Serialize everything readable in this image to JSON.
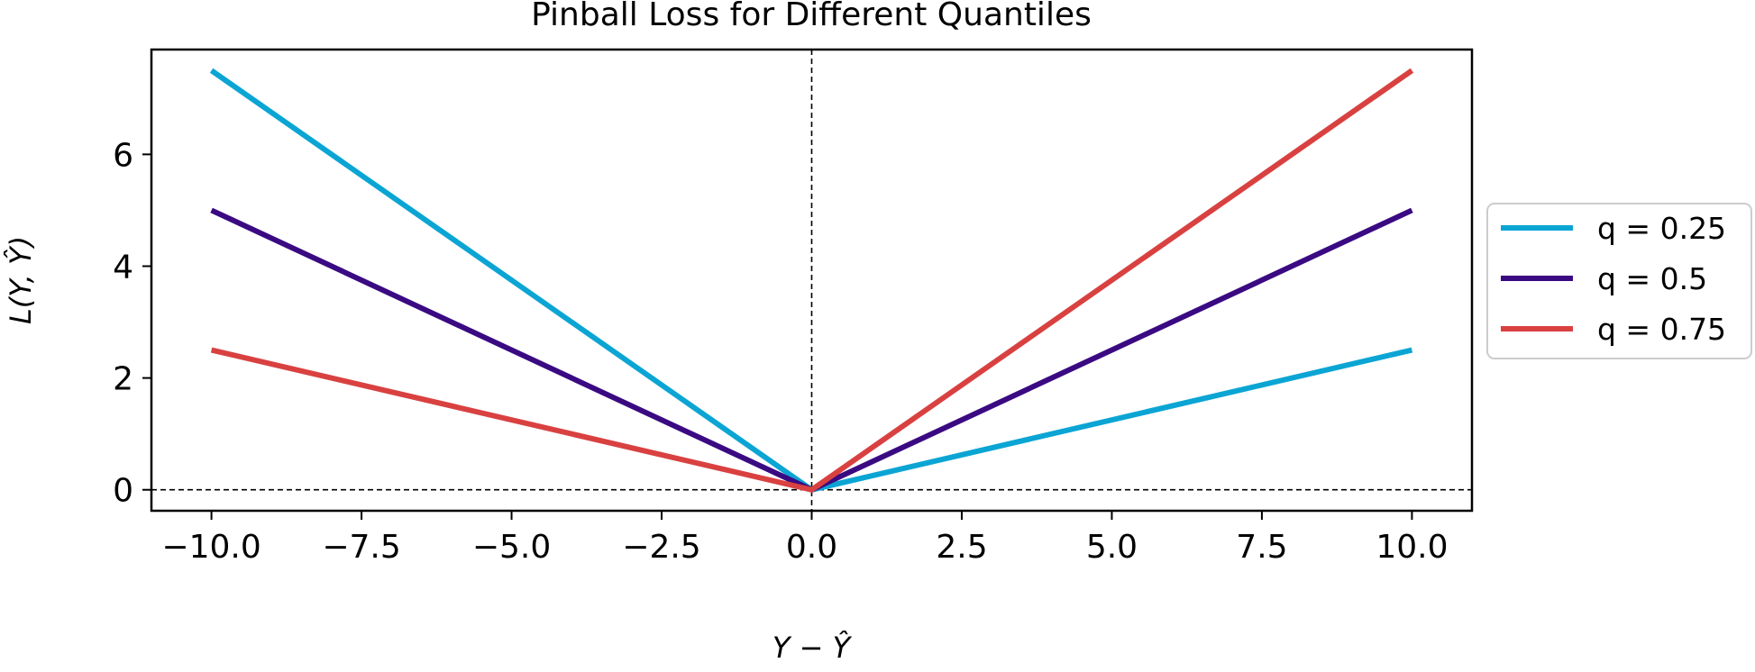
{
  "chart_data": {
    "type": "line",
    "title": "Pinball Loss for Different Quantiles",
    "xlabel": "Y − Ŷ",
    "ylabel": "L(Y, Ŷ)",
    "xlim": [
      -11,
      11
    ],
    "ylim": [
      -0.375,
      7.875
    ],
    "x": [
      -10,
      0,
      10
    ],
    "x_ticks": [
      -10.0,
      -7.5,
      -5.0,
      -2.5,
      0.0,
      2.5,
      5.0,
      7.5,
      10.0
    ],
    "x_tick_labels": [
      "−10.0",
      "−7.5",
      "−5.0",
      "−2.5",
      "0.0",
      "2.5",
      "5.0",
      "7.5",
      "10.0"
    ],
    "y_ticks": [
      0,
      2,
      4,
      6
    ],
    "y_tick_labels": [
      "0",
      "2",
      "4",
      "6"
    ],
    "series": [
      {
        "name": "q = 0.25",
        "color": "#0ba5d4",
        "values": [
          7.5,
          0,
          2.5
        ]
      },
      {
        "name": "q = 0.5",
        "color": "#3a0a82",
        "values": [
          5.0,
          0,
          5.0
        ]
      },
      {
        "name": "q = 0.75",
        "color": "#d94141",
        "values": [
          2.5,
          0,
          7.5
        ]
      }
    ],
    "reference_lines": [
      {
        "orientation": "vertical",
        "value": 0,
        "style": "dashed",
        "color": "#000000"
      },
      {
        "orientation": "horizontal",
        "value": 0,
        "style": "dashed",
        "color": "#000000"
      }
    ],
    "grid": false,
    "legend_position": "right-outside"
  }
}
